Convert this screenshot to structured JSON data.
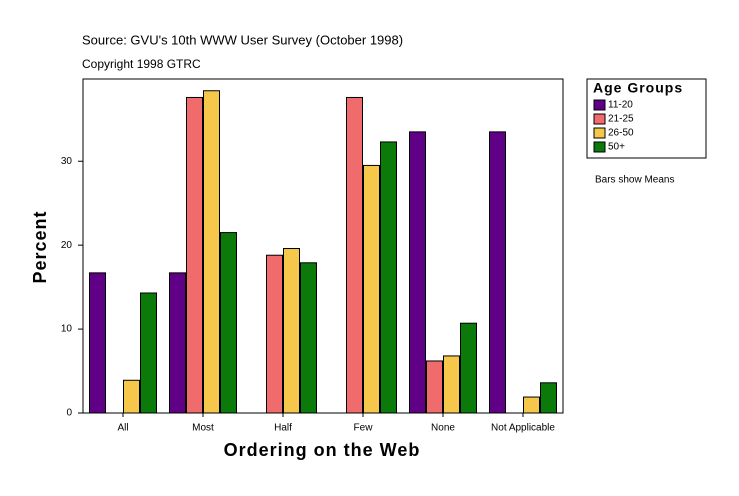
{
  "chart_data": {
    "type": "bar",
    "source": "Source: GVU's 10th WWW User Survey (October 1998)",
    "copyright": "Copyright 1998 GTRC",
    "xlabel": "Ordering on the Web",
    "ylabel": "Percent",
    "legend_title": "Age Groups",
    "note": "Bars show Means",
    "categories": [
      "All",
      "Most",
      "Half",
      "Few",
      "None",
      "Not Applicable"
    ],
    "series": [
      {
        "name": "11-20",
        "color": "#5f0087",
        "values": [
          16.7,
          16.7,
          null,
          null,
          33.5,
          33.5
        ]
      },
      {
        "name": "21-25",
        "color": "#f06b6b",
        "values": [
          null,
          37.6,
          18.8,
          37.6,
          6.2,
          null
        ]
      },
      {
        "name": "26-50",
        "color": "#f5c84b",
        "values": [
          3.9,
          38.4,
          19.6,
          29.5,
          6.8,
          1.9
        ]
      },
      {
        "name": "50+",
        "color": "#0b7a0b",
        "values": [
          14.3,
          21.5,
          17.9,
          32.3,
          10.7,
          3.6
        ]
      }
    ],
    "ylim": [
      0,
      39.8
    ],
    "yticks": [
      0,
      10,
      20,
      30
    ],
    "grid": false,
    "legend": "right"
  }
}
